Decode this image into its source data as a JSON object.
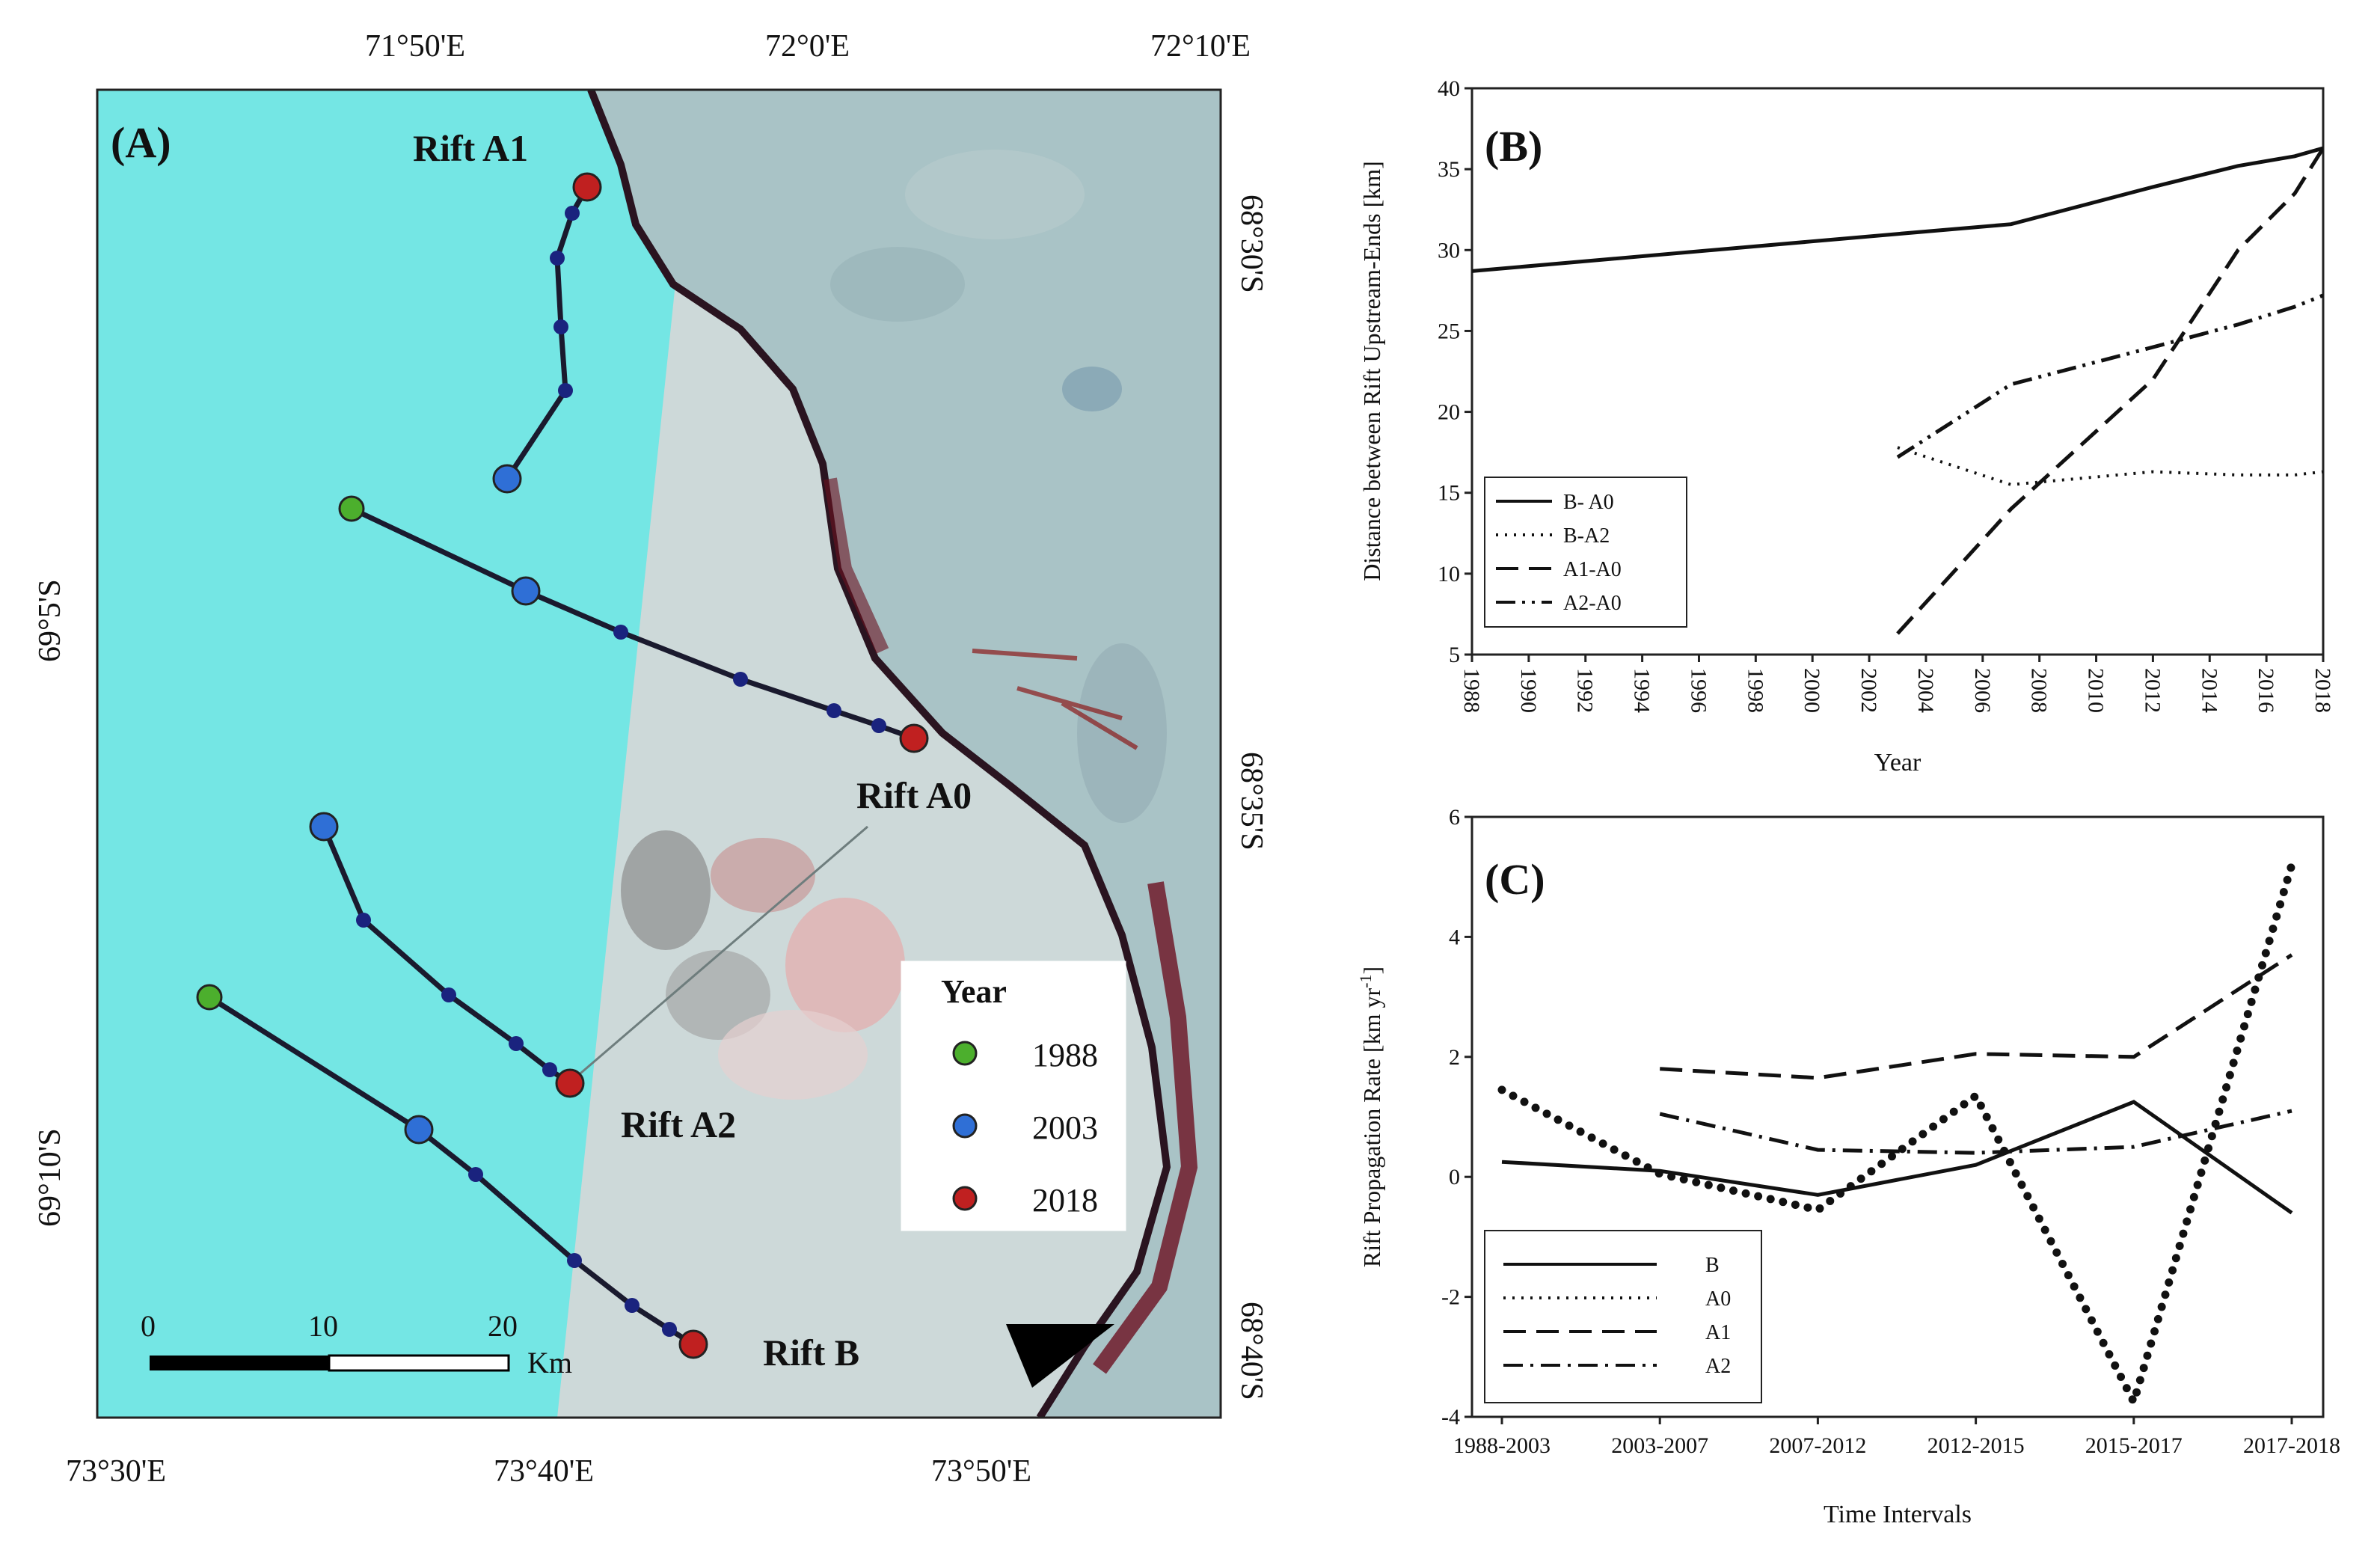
{
  "colors": {
    "map_water": "#74e6e4",
    "map_ice": "#cdd9d9",
    "map_shelf": "#a9c3c6",
    "map_dark": "#6b1020",
    "year_1988": "#4caf2d",
    "year_2003": "#2f6fd6",
    "year_2018": "#c02020",
    "track": "#1a1a2e",
    "mid_point": "#1a237e"
  },
  "map": {
    "panel_label": "(A)",
    "top_lon_labels": [
      "71°50'E",
      "72°0'E",
      "72°10'E"
    ],
    "bottom_lon_labels": [
      "73°30'E",
      "73°40'E",
      "73°50'E"
    ],
    "left_lat_labels": [
      "69°5'S",
      "69°10'S"
    ],
    "right_lat_labels": [
      "68°30'S",
      "68°35'S",
      "68°40'S"
    ],
    "rift_labels": {
      "a1": "Rift A1",
      "a0": "Rift A0",
      "a2": "Rift A2",
      "b": "Rift B"
    },
    "legend": {
      "title": "Year",
      "y1988": "1988",
      "y2003": "2003",
      "y2018": "2018"
    },
    "scalebar": {
      "t0": "0",
      "t10": "10",
      "t20": "20",
      "unit": "Km"
    }
  },
  "chart_data": [
    {
      "type": "line",
      "panel": "(B)",
      "title": "",
      "xlabel": "Year",
      "ylabel": "Distance between Rift Upstream-Ends [km]",
      "xlim": [
        1988,
        2018
      ],
      "ylim": [
        5,
        40
      ],
      "x_ticks": [
        "1988",
        "1990",
        "1992",
        "1994",
        "1996",
        "1998",
        "2000",
        "2002",
        "2004",
        "2006",
        "2008",
        "2010",
        "2012",
        "2014",
        "2016",
        "2018"
      ],
      "y_ticks": [
        "5",
        "10",
        "15",
        "20",
        "25",
        "30",
        "35",
        "40"
      ],
      "legend_position": "bottom-left",
      "series": [
        {
          "name": "B- A0",
          "style": "solid",
          "x": [
            1988,
            2003,
            2007,
            2012,
            2015,
            2017,
            2018
          ],
          "y": [
            28.7,
            31.0,
            31.6,
            33.9,
            35.2,
            35.8,
            36.3
          ]
        },
        {
          "name": "B-A2",
          "style": "dotted",
          "x": [
            2003,
            2007,
            2012,
            2015,
            2017,
            2018
          ],
          "y": [
            17.8,
            15.5,
            16.3,
            16.1,
            16.1,
            16.3
          ]
        },
        {
          "name": "A1-A0",
          "style": "dashed",
          "x": [
            2003,
            2007,
            2012,
            2015,
            2017,
            2018
          ],
          "y": [
            6.3,
            14.0,
            22.0,
            30.0,
            33.5,
            36.3
          ]
        },
        {
          "name": "A2-A0",
          "style": "dashdotdot",
          "x": [
            2003,
            2007,
            2012,
            2015,
            2017,
            2018
          ],
          "y": [
            17.2,
            21.7,
            24.0,
            25.4,
            26.5,
            27.2
          ]
        }
      ]
    },
    {
      "type": "line",
      "panel": "(C)",
      "title": "",
      "xlabel": "Time Intervals",
      "ylabel": "Rift Propagation Rate [km yr-1]",
      "ylabel_main": "Rift Propagation Rate [km yr",
      "ylabel_sup": "-1",
      "ylabel_end": "]",
      "categories": [
        "1988-2003",
        "2003-2007",
        "2007-2012",
        "2012-2015",
        "2015-2017",
        "2017-2018"
      ],
      "ylim": [
        -4,
        6
      ],
      "y_ticks": [
        "-4",
        "-2",
        "0",
        "2",
        "4",
        "6"
      ],
      "legend_position": "bottom-left",
      "series": [
        {
          "name": "B",
          "style": "solid",
          "values": [
            0.25,
            0.1,
            -0.3,
            0.2,
            1.25,
            -0.6
          ]
        },
        {
          "name": "A0",
          "style": "dotted",
          "values": [
            1.45,
            0.05,
            -0.55,
            1.35,
            -3.75,
            5.2
          ]
        },
        {
          "name": "A1",
          "style": "dashed",
          "values": [
            null,
            1.8,
            1.65,
            2.05,
            2.0,
            3.7
          ]
        },
        {
          "name": "A2",
          "style": "dashdot",
          "values": [
            null,
            1.05,
            0.45,
            0.4,
            0.5,
            1.1
          ]
        }
      ]
    }
  ]
}
